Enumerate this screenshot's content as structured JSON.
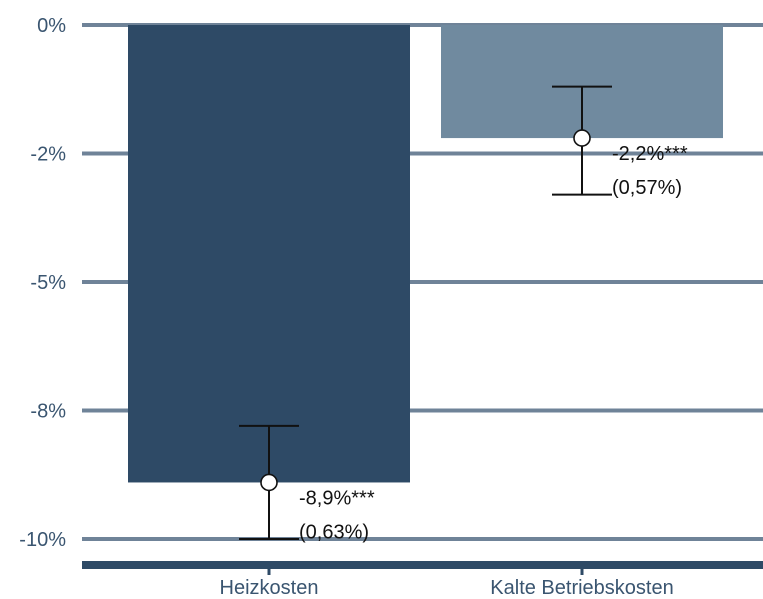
{
  "chart_data": {
    "type": "bar",
    "title": "",
    "xlabel": "",
    "ylabel": "",
    "ylim": [
      -10.5,
      0
    ],
    "grid": true,
    "y_ticks": [
      {
        "value": 0,
        "label": "0%"
      },
      {
        "value": -2.5,
        "label": "-2%"
      },
      {
        "value": -5,
        "label": "-5%"
      },
      {
        "value": -7.5,
        "label": "-8%"
      },
      {
        "value": -10,
        "label": "-10%"
      }
    ],
    "categories": [
      "Heizkosten",
      "Kalte Betriebskosten"
    ],
    "values": [
      -8.9,
      -2.2
    ],
    "bar_values": [
      -8.9,
      -2.2
    ],
    "error_low": [
      -10.0,
      -3.3
    ],
    "error_high": [
      -7.8,
      -1.2
    ],
    "annotations": [
      {
        "category": "Heizkosten",
        "estimate": "-8,9%***",
        "se": "(0,63%)"
      },
      {
        "category": "Kalte Betriebskosten",
        "estimate": "-2,2%***",
        "se": "(0,57%)"
      }
    ],
    "colors": {
      "bars": [
        "#2e4a66",
        "#708a9f"
      ],
      "grid": "#6f8398",
      "axis": "#2e4a66",
      "label": "#3a5570",
      "error": "#111111"
    }
  }
}
